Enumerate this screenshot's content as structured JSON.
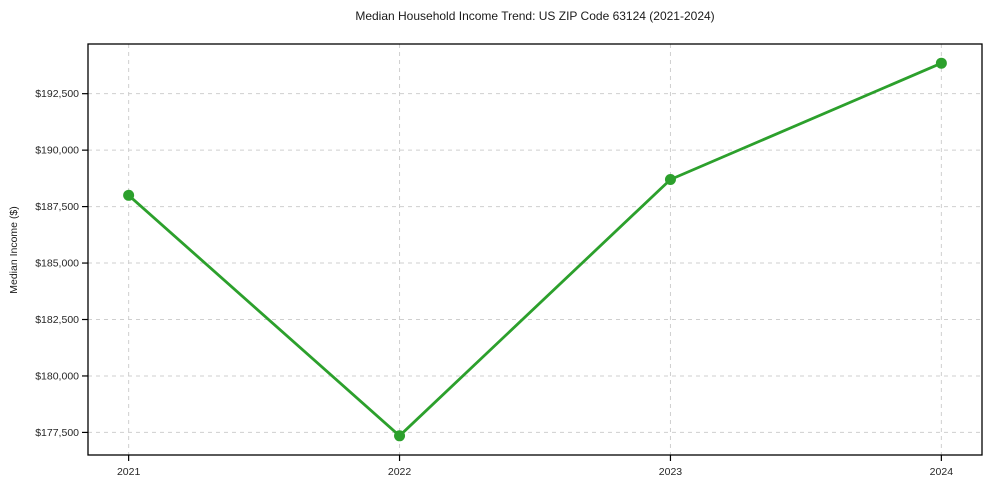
{
  "chart_data": {
    "type": "line",
    "title": "Median Household Income Trend: US ZIP Code 63124 (2021-2024)",
    "xlabel": "",
    "ylabel": "Median Income ($)",
    "x": [
      2021,
      2022,
      2023,
      2024
    ],
    "x_tick_labels": [
      "2021",
      "2022",
      "2023",
      "2024"
    ],
    "series": [
      {
        "name": "Median household income",
        "values": [
          188000,
          177350,
          188700,
          193850
        ]
      }
    ],
    "y_ticks": [
      177500,
      180000,
      182500,
      185000,
      187500,
      190000,
      192500
    ],
    "y_tick_labels": [
      "$177,500",
      "$180,000",
      "$182,500",
      "$185,000",
      "$187,500",
      "$190,000",
      "$192,500"
    ],
    "xlim": [
      2020.85,
      2024.15
    ],
    "ylim": [
      176500,
      194700
    ],
    "grid": true,
    "grid_style": "dashed",
    "legend": "none",
    "line_color": "#2ca02c",
    "marker": "circle",
    "grid_color": "#cfcfcf",
    "spine_color": "#000000"
  }
}
